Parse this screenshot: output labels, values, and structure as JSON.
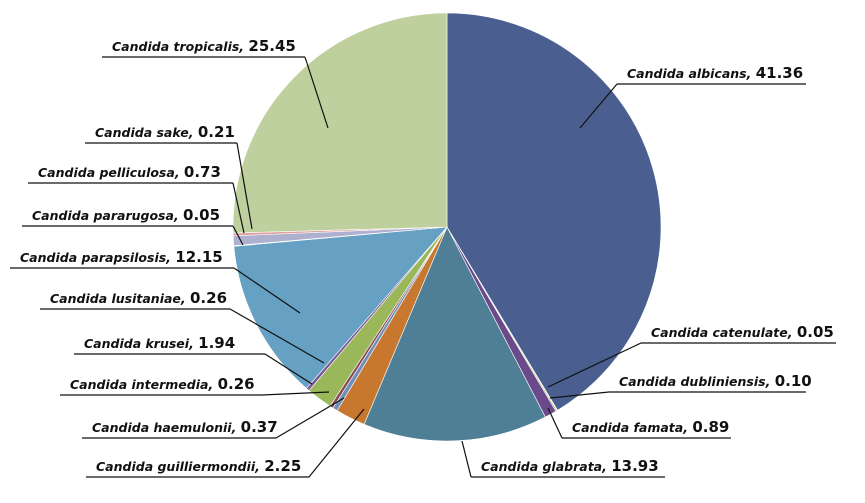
{
  "chart_data": {
    "type": "pie",
    "title": "",
    "start_angle_deg": 0,
    "direction": "clockwise",
    "slices": [
      {
        "label": "Candida albicans",
        "value": 41.36,
        "color": "#4a5f90"
      },
      {
        "label": "Candida catenulate",
        "value": 0.05,
        "color": "#8a9a4a"
      },
      {
        "label": "Candida dubliniensis",
        "value": 0.1,
        "color": "#9aba5a"
      },
      {
        "label": "Candida famata",
        "value": 0.89,
        "color": "#6a4a8a"
      },
      {
        "label": "Candida glabrata",
        "value": 13.93,
        "color": "#4f7f97"
      },
      {
        "label": "Candida guilliermondii",
        "value": 2.25,
        "color": "#c8782e"
      },
      {
        "label": "Candida haemulonii",
        "value": 0.37,
        "color": "#6f8fb8"
      },
      {
        "label": "Candida intermedia",
        "value": 0.26,
        "color": "#8a4a52"
      },
      {
        "label": "Candida krusei",
        "value": 1.94,
        "color": "#9ab85a"
      },
      {
        "label": "Candida lusitaniae",
        "value": 0.26,
        "color": "#7a5a9a"
      },
      {
        "label": "Candida parapsilosis",
        "value": 12.15,
        "color": "#66a0c2"
      },
      {
        "label": "Candida pararugosa",
        "value": 0.05,
        "color": "#b0b0c8"
      },
      {
        "label": "Candida pelliculosa",
        "value": 0.73,
        "color": "#aeb0d0"
      },
      {
        "label": "Candida sake",
        "value": 0.21,
        "color": "#e0a0a0"
      },
      {
        "label": "Candida tropicalis",
        "value": 25.45,
        "color": "#bfd09f"
      }
    ]
  }
}
